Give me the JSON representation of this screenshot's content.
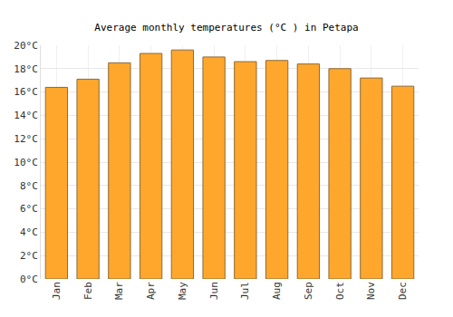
{
  "chart_data": {
    "type": "bar",
    "title": "Average monthly temperatures (°C ) in Petapa",
    "categories": [
      "Jan",
      "Feb",
      "Mar",
      "Apr",
      "May",
      "Jun",
      "Jul",
      "Aug",
      "Sep",
      "Oct",
      "Nov",
      "Dec"
    ],
    "values": [
      16.4,
      17.1,
      18.5,
      19.3,
      19.6,
      19.0,
      18.6,
      18.7,
      18.4,
      18.0,
      17.2,
      16.5
    ],
    "color": "#ffa72c",
    "ylim": [
      0,
      20
    ],
    "yticks": [
      {
        "value": 0,
        "label": "0°C"
      },
      {
        "value": 2,
        "label": "2°C"
      },
      {
        "value": 4,
        "label": "4°C"
      },
      {
        "value": 6,
        "label": "6°C"
      },
      {
        "value": 8,
        "label": "8°C"
      },
      {
        "value": 10,
        "label": "10°C"
      },
      {
        "value": 12,
        "label": "12°C"
      },
      {
        "value": 14,
        "label": "14°C"
      },
      {
        "value": 16,
        "label": "16°C"
      },
      {
        "value": 18,
        "label": "18°C"
      },
      {
        "value": 20,
        "label": "20°C"
      }
    ],
    "grid": true
  }
}
